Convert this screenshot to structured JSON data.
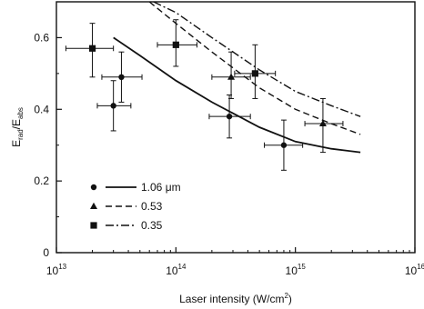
{
  "chart_data": {
    "type": "scatter",
    "xlabel": "Laser intensity (W/cm",
    "xlabel_sup": "2",
    "xlabel_close": ")",
    "ylabel_main": "E",
    "ylabel_sub1": "rad",
    "ylabel_mid": "/E",
    "ylabel_sub2": "abs",
    "x_scale": "log",
    "xlim": [
      10000000000000.0,
      1e+16
    ],
    "ylim": [
      0,
      0.7
    ],
    "x_ticks": [
      {
        "base": "10",
        "exp": "13",
        "value": 10000000000000.0
      },
      {
        "base": "10",
        "exp": "14",
        "value": 100000000000000.0
      },
      {
        "base": "10",
        "exp": "15",
        "value": 1000000000000000.0
      },
      {
        "base": "10",
        "exp": "16",
        "value": 1e+16
      }
    ],
    "y_ticks": [
      {
        "label": "0",
        "value": 0
      },
      {
        "label": "0.2",
        "value": 0.2
      },
      {
        "label": "0.4",
        "value": 0.4
      },
      {
        "label": "0.6",
        "value": 0.6
      }
    ],
    "grid": false,
    "legend_position": "bottom-left",
    "series": [
      {
        "name": "1.06 μm",
        "marker": "circle",
        "line_style": "solid",
        "points": [
          {
            "x": 30000000000000.0,
            "y": 0.41,
            "xerr": [
              22000000000000.0,
              42000000000000.0
            ],
            "yerr": [
              0.34,
              0.48
            ]
          },
          {
            "x": 35000000000000.0,
            "y": 0.49,
            "xerr": [
              24000000000000.0,
              52000000000000.0
            ],
            "yerr": [
              0.42,
              0.56
            ]
          },
          {
            "x": 280000000000000.0,
            "y": 0.38,
            "xerr": [
              190000000000000.0,
              420000000000000.0
            ],
            "yerr": [
              0.32,
              0.44
            ]
          },
          {
            "x": 800000000000000.0,
            "y": 0.3,
            "xerr": [
              550000000000000.0,
              1150000000000000.0
            ],
            "yerr": [
              0.23,
              0.37
            ]
          }
        ],
        "curve": [
          {
            "x": 30000000000000.0,
            "y": 0.6
          },
          {
            "x": 50000000000000.0,
            "y": 0.55
          },
          {
            "x": 100000000000000.0,
            "y": 0.48
          },
          {
            "x": 200000000000000.0,
            "y": 0.42
          },
          {
            "x": 500000000000000.0,
            "y": 0.35
          },
          {
            "x": 1000000000000000.0,
            "y": 0.31
          },
          {
            "x": 2000000000000000.0,
            "y": 0.29
          },
          {
            "x": 3500000000000000.0,
            "y": 0.28
          }
        ]
      },
      {
        "name": "0.53",
        "marker": "triangle",
        "line_style": "dashed",
        "points": [
          {
            "x": 290000000000000.0,
            "y": 0.49,
            "xerr": [
              200000000000000.0,
              420000000000000.0
            ],
            "yerr": [
              0.43,
              0.56
            ]
          },
          {
            "x": 1700000000000000.0,
            "y": 0.36,
            "xerr": [
              1200000000000000.0,
              2500000000000000.0
            ],
            "yerr": [
              0.28,
              0.43
            ]
          }
        ],
        "curve": [
          {
            "x": 60000000000000.0,
            "y": 0.7
          },
          {
            "x": 100000000000000.0,
            "y": 0.64
          },
          {
            "x": 200000000000000.0,
            "y": 0.56
          },
          {
            "x": 500000000000000.0,
            "y": 0.46
          },
          {
            "x": 1000000000000000.0,
            "y": 0.4
          },
          {
            "x": 2000000000000000.0,
            "y": 0.36
          },
          {
            "x": 3500000000000000.0,
            "y": 0.33
          }
        ]
      },
      {
        "name": "0.35",
        "marker": "square",
        "line_style": "dashdot",
        "points": [
          {
            "x": 20000000000000.0,
            "y": 0.57,
            "xerr": [
              12000000000000.0,
              30000000000000.0
            ],
            "yerr": [
              0.49,
              0.64
            ]
          },
          {
            "x": 100000000000000.0,
            "y": 0.58,
            "xerr": [
              70000000000000.0,
              150000000000000.0
            ],
            "yerr": [
              0.52,
              0.65
            ]
          },
          {
            "x": 460000000000000.0,
            "y": 0.5,
            "xerr": [
              310000000000000.0,
              680000000000000.0
            ],
            "yerr": [
              0.43,
              0.58
            ]
          }
        ],
        "curve": [
          {
            "x": 65000000000000.0,
            "y": 0.7
          },
          {
            "x": 100000000000000.0,
            "y": 0.67
          },
          {
            "x": 200000000000000.0,
            "y": 0.6
          },
          {
            "x": 500000000000000.0,
            "y": 0.51
          },
          {
            "x": 1000000000000000.0,
            "y": 0.45
          },
          {
            "x": 2000000000000000.0,
            "y": 0.41
          },
          {
            "x": 3500000000000000.0,
            "y": 0.38
          }
        ]
      }
    ]
  }
}
